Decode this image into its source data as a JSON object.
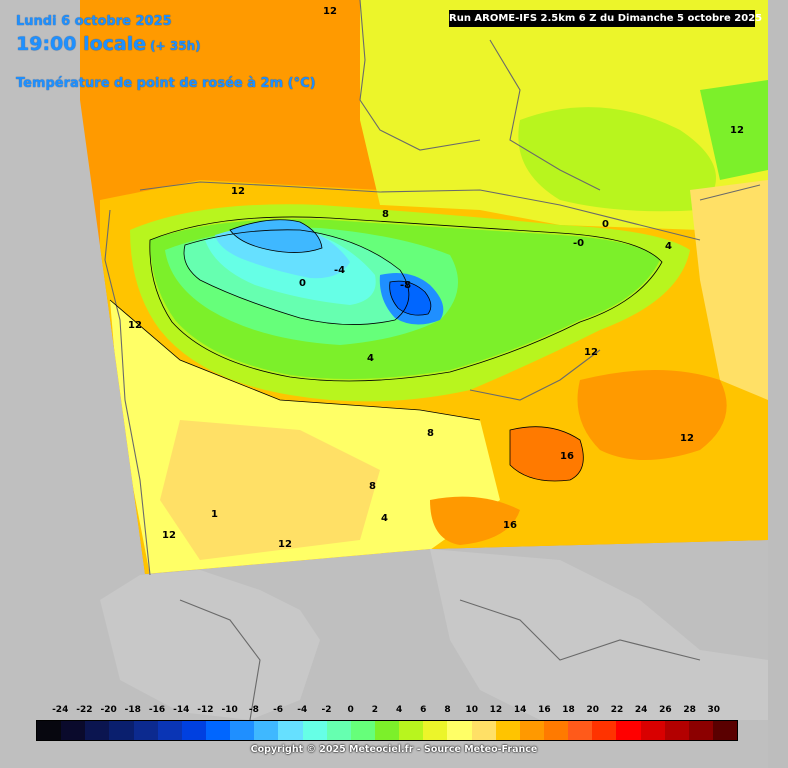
{
  "header": {
    "date": "Lundi 6 octobre 2025",
    "time": "19:00 locale",
    "lead": "(+ 35h)",
    "parameter": "Température de point de rosée à 2m (°C)"
  },
  "run_info": "Run AROME-IFS 2.5km 6 Z du Dimanche 5 octobre 2025",
  "contour_labels": [
    "12",
    "12",
    "8",
    "0",
    "-0",
    "-4",
    "0",
    "-8",
    "4",
    "12",
    "8",
    "12",
    "4",
    "12",
    "12",
    "16",
    "16",
    "1",
    "12",
    "12",
    "8",
    "4"
  ],
  "legend": {
    "ticks": [
      "-24",
      "-22",
      "-20",
      "-18",
      "-16",
      "-14",
      "-12",
      "-10",
      "-8",
      "-6",
      "-4",
      "-2",
      "0",
      "2",
      "4",
      "6",
      "8",
      "10",
      "12",
      "14",
      "16",
      "18",
      "20",
      "22",
      "24",
      "26",
      "28",
      "30"
    ],
    "colors": [
      "#07070f",
      "#0a0a2c",
      "#0b1550",
      "#0a1f6e",
      "#0c2a8f",
      "#0a35b5",
      "#0040e0",
      "#0066ff",
      "#1f8fff",
      "#3fb8ff",
      "#66e0ff",
      "#66ffe6",
      "#66ffb0",
      "#66ff7a",
      "#7cf02a",
      "#b8f51e",
      "#ecf52a",
      "#ffff66",
      "#ffe066",
      "#ffc400",
      "#ff9900",
      "#ff7a00",
      "#ff5a1a",
      "#ff3300",
      "#ff0000",
      "#d90000",
      "#b30000",
      "#8c0000",
      "#5a0000"
    ]
  },
  "copyright": "Copyright © 2025 Meteociel.fr - Source Meteo-France"
}
